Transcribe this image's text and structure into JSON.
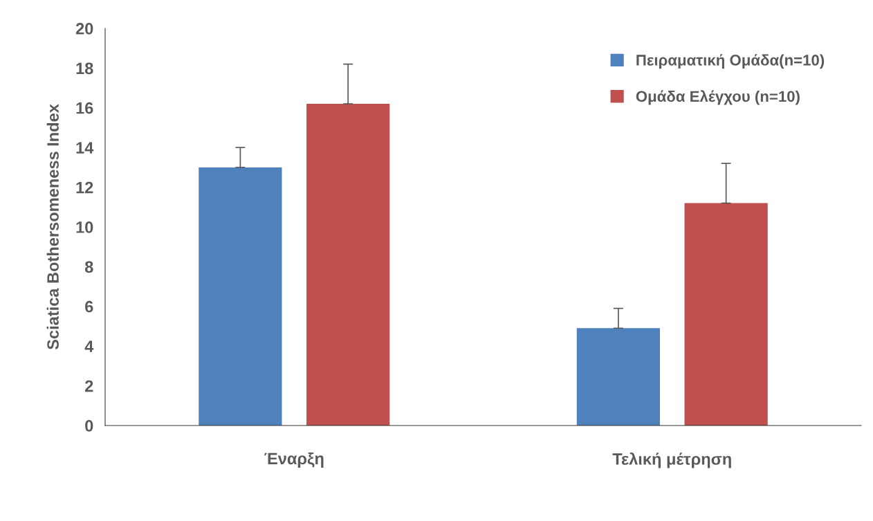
{
  "chart_data": {
    "type": "bar",
    "ylabel": "Sciatica Bothersomeness Index",
    "categories": [
      "Έναρξη",
      "Τελική μέτρηση"
    ],
    "series": [
      {
        "name": "Πειραματική Ομάδα(n=10)",
        "color": "#4f81bd",
        "values": [
          13.0,
          4.9
        ],
        "errors": [
          [
            13.0,
            14.0
          ],
          [
            4.9,
            5.9
          ]
        ]
      },
      {
        "name": "Ομάδα Ελέγχου (n=10)",
        "color": "#c0504d",
        "values": [
          16.2,
          11.2
        ],
        "errors": [
          [
            16.2,
            18.2
          ],
          [
            11.2,
            13.2
          ]
        ]
      }
    ],
    "ylim": [
      0,
      20
    ],
    "yticks": [
      0,
      2,
      4,
      6,
      8,
      10,
      12,
      14,
      16,
      18,
      20
    ],
    "grid": false,
    "legend": "top right"
  }
}
